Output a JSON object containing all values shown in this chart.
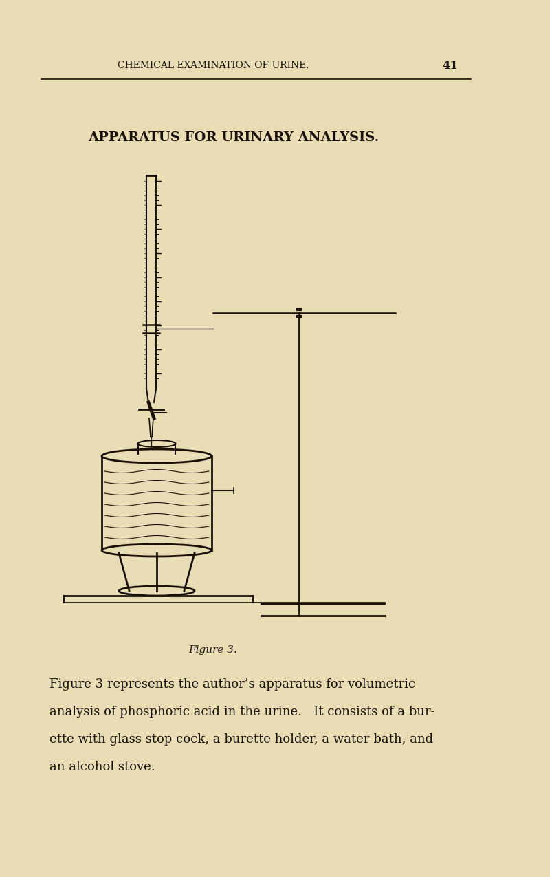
{
  "bg_color": "#e8ddb5",
  "text_color": "#1a1008",
  "header_text": "CHEMICAL EXAMINATION OF URINE.",
  "page_number": "41",
  "title": "APPARATUS FOR URINARY ANALYSIS.",
  "figure_caption": "Figure 3.",
  "body_text_lines": [
    "Figure 3 represents the author’s apparatus for volumetric",
    "analysis of phosphoric acid in the urine.   It consists of a bur-",
    "ette with glass stop-cock, a burette holder, a water-bath, and",
    "an alcohol stove."
  ],
  "line_color": "#1a1008"
}
